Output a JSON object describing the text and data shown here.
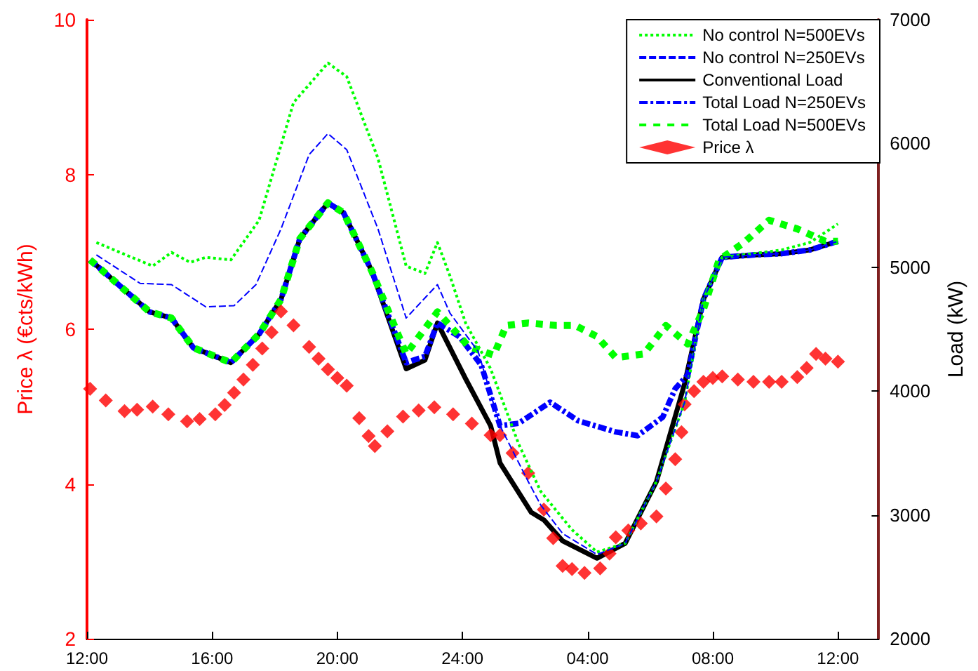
{
  "chart_data": {
    "type": "line",
    "ylabel": "Price λ (€cts/kWh)",
    "y2label": "Load (kW)",
    "xlim": [
      "2000-01-01T12:00",
      "2000-01-02T13:18"
    ],
    "xticks": [
      {
        "value": "2000-01-01T12:00",
        "label": "12:00"
      },
      {
        "value": "2000-01-01T16:00",
        "label": "16:00"
      },
      {
        "value": "2000-01-01T20:00",
        "label": "20:00"
      },
      {
        "value": "2000-01-02T00:00",
        "label": "24:00"
      },
      {
        "value": "2000-01-02T04:00",
        "label": "04:00"
      },
      {
        "value": "2000-01-02T08:00",
        "label": "08:00"
      },
      {
        "value": "2000-01-02T12:00",
        "label": "12:00"
      }
    ],
    "ylim": [
      2,
      10
    ],
    "yticks": [
      2,
      4,
      6,
      8,
      10
    ],
    "y2lim": [
      2000,
      7000
    ],
    "y2ticks": [
      2000,
      3000,
      4000,
      5000,
      6000,
      7000
    ],
    "legend": "top right",
    "grid": false,
    "marker": "none",
    "series": [
      {
        "name": "No control N=500EVs",
        "color": "#00ff00",
        "axis": "y2",
        "line_style": "dotted",
        "x": [
          "2000-01-01T12:18",
          "2000-01-01T14:06",
          "2000-01-01T14:42",
          "2000-01-01T15:18",
          "2000-01-01T15:48",
          "2000-01-01T16:36",
          "2000-01-01T17:30",
          "2000-01-01T18:36",
          "2000-01-01T19:42",
          "2000-01-01T20:18",
          "2000-01-01T21:18",
          "2000-01-01T22:12",
          "2000-01-01T22:48",
          "2000-01-01T23:12",
          "2000-01-01T23:36",
          "2000-01-02T00:06",
          "2000-01-02T00:54",
          "2000-01-02T01:48",
          "2000-01-02T02:30",
          "2000-01-02T03:30",
          "2000-01-02T04:18",
          "2000-01-02T05:12",
          "2000-01-02T06:12",
          "2000-01-02T07:06",
          "2000-01-02T07:42",
          "2000-01-02T08:18",
          "2000-01-02T09:18",
          "2000-01-02T10:12",
          "2000-01-02T11:06",
          "2000-01-02T12:00"
        ],
        "values": [
          5200,
          5010,
          5120,
          5040,
          5080,
          5060,
          5380,
          6330,
          6650,
          6540,
          5880,
          5010,
          4950,
          5200,
          4930,
          4550,
          4180,
          3570,
          3190,
          2880,
          2700,
          2770,
          3270,
          3910,
          4740,
          5080,
          5110,
          5140,
          5200,
          5350
        ]
      },
      {
        "name": "No control N=250EVs",
        "color": "#0000ff",
        "axis": "y2",
        "line_style": "dashed",
        "x": [
          "2000-01-01T12:18",
          "2000-01-01T13:42",
          "2000-01-01T14:42",
          "2000-01-01T15:48",
          "2000-01-01T16:42",
          "2000-01-01T17:24",
          "2000-01-01T18:12",
          "2000-01-01T19:06",
          "2000-01-01T19:42",
          "2000-01-01T20:18",
          "2000-01-01T21:18",
          "2000-01-01T22:12",
          "2000-01-01T23:12",
          "2000-01-01T23:36",
          "2000-01-02T00:30",
          "2000-01-02T01:12",
          "2000-01-02T02:06",
          "2000-01-02T02:30",
          "2000-01-02T03:12",
          "2000-01-02T04:18",
          "2000-01-02T05:12",
          "2000-01-02T06:12",
          "2000-01-02T07:06",
          "2000-01-02T07:42",
          "2000-01-02T08:18",
          "2000-01-02T09:18",
          "2000-01-02T10:12",
          "2000-01-02T11:06",
          "2000-01-02T12:00"
        ],
        "values": [
          5100,
          4870,
          4860,
          4680,
          4690,
          4860,
          5310,
          5910,
          6080,
          5950,
          5310,
          4590,
          4860,
          4630,
          4320,
          3720,
          3270,
          3080,
          2850,
          2680,
          2770,
          3270,
          3910,
          4740,
          5080,
          5100,
          5110,
          5140,
          5210
        ]
      },
      {
        "name": "Conventional Load",
        "color": "#000000",
        "axis": "y2",
        "line_style": "solid",
        "x": [
          "2000-01-01T12:06",
          "2000-01-01T14:00",
          "2000-01-01T14:42",
          "2000-01-01T15:24",
          "2000-01-01T16:36",
          "2000-01-01T17:30",
          "2000-01-01T18:12",
          "2000-01-01T18:48",
          "2000-01-01T19:42",
          "2000-01-01T20:12",
          "2000-01-01T21:06",
          "2000-01-01T22:12",
          "2000-01-01T22:48",
          "2000-01-01T23:12",
          "2000-01-02T00:06",
          "2000-01-02T00:54",
          "2000-01-02T01:12",
          "2000-01-02T02:12",
          "2000-01-02T02:36",
          "2000-01-02T03:12",
          "2000-01-02T04:18",
          "2000-01-02T05:12",
          "2000-01-02T06:12",
          "2000-01-02T07:06",
          "2000-01-02T07:42",
          "2000-01-02T08:18",
          "2000-01-02T09:18",
          "2000-01-02T10:12",
          "2000-01-02T11:06",
          "2000-01-02T12:00"
        ],
        "values": [
          5060,
          4640,
          4590,
          4350,
          4230,
          4460,
          4740,
          5230,
          5520,
          5440,
          4970,
          4180,
          4250,
          4550,
          4100,
          3720,
          3420,
          3020,
          2960,
          2790,
          2650,
          2770,
          3270,
          4060,
          4740,
          5080,
          5100,
          5110,
          5140,
          5210
        ]
      },
      {
        "name": "Total Load N=250EVs",
        "color": "#0000ff",
        "axis": "y2",
        "line_style": "dashed",
        "x": [
          "2000-01-01T12:06",
          "2000-01-01T14:00",
          "2000-01-01T14:42",
          "2000-01-01T15:24",
          "2000-01-01T16:36",
          "2000-01-01T17:30",
          "2000-01-01T18:12",
          "2000-01-01T18:48",
          "2000-01-01T19:42",
          "2000-01-01T20:12",
          "2000-01-01T21:06",
          "2000-01-01T22:12",
          "2000-01-01T22:48",
          "2000-01-01T23:12",
          "2000-01-01T23:54",
          "2000-01-02T00:36",
          "2000-01-02T01:12",
          "2000-01-02T01:48",
          "2000-01-02T02:48",
          "2000-01-02T03:42",
          "2000-01-02T04:54",
          "2000-01-02T05:36",
          "2000-01-02T06:24",
          "2000-01-02T06:48",
          "2000-01-02T07:12",
          "2000-01-02T07:42",
          "2000-01-02T08:18",
          "2000-01-02T09:18",
          "2000-01-02T10:12",
          "2000-01-02T11:06",
          "2000-01-02T12:00"
        ],
        "values": [
          5060,
          4640,
          4590,
          4350,
          4230,
          4460,
          4740,
          5230,
          5520,
          5440,
          4970,
          4230,
          4280,
          4550,
          4440,
          4210,
          3720,
          3740,
          3910,
          3760,
          3670,
          3640,
          3790,
          4020,
          4130,
          4740,
          5080,
          5100,
          5110,
          5140,
          5210
        ]
      },
      {
        "name": "Total Load N=500EVs",
        "color": "#00ff00",
        "axis": "y2",
        "line_style": "dotted",
        "x": [
          "2000-01-01T12:06",
          "2000-01-01T14:00",
          "2000-01-01T14:42",
          "2000-01-01T15:24",
          "2000-01-01T16:36",
          "2000-01-01T17:30",
          "2000-01-01T18:12",
          "2000-01-01T18:48",
          "2000-01-01T19:42",
          "2000-01-01T20:12",
          "2000-01-01T21:06",
          "2000-01-01T22:12",
          "2000-01-01T23:12",
          "2000-01-02T00:12",
          "2000-01-02T01:00",
          "2000-01-02T01:24",
          "2000-01-02T02:06",
          "2000-01-02T03:00",
          "2000-01-02T03:36",
          "2000-01-02T04:18",
          "2000-01-02T04:54",
          "2000-01-02T05:48",
          "2000-01-02T06:30",
          "2000-01-02T07:12",
          "2000-01-02T07:42",
          "2000-01-02T08:12",
          "2000-01-02T09:00",
          "2000-01-02T09:48",
          "2000-01-02T10:42",
          "2000-01-02T11:36",
          "2000-01-02T12:00"
        ],
        "values": [
          5060,
          4640,
          4590,
          4350,
          4230,
          4460,
          4740,
          5230,
          5520,
          5440,
          4970,
          4300,
          4640,
          4360,
          4290,
          4530,
          4550,
          4530,
          4530,
          4440,
          4270,
          4300,
          4530,
          4380,
          4660,
          5060,
          5200,
          5380,
          5310,
          5210,
          5210
        ]
      },
      {
        "name": "Price λ",
        "type": "scatter",
        "marker": "diamond",
        "color": "#ff0000",
        "x": [
          "2000-01-01T12:06",
          "2000-01-01T12:36",
          "2000-01-01T13:12",
          "2000-01-01T13:36",
          "2000-01-01T14:06",
          "2000-01-01T14:36",
          "2000-01-01T15:12",
          "2000-01-01T15:36",
          "2000-01-01T16:06",
          "2000-01-01T16:24",
          "2000-01-01T16:42",
          "2000-01-01T17:00",
          "2000-01-01T17:18",
          "2000-01-01T17:36",
          "2000-01-01T17:54",
          "2000-01-01T18:12",
          "2000-01-01T18:36",
          "2000-01-01T19:06",
          "2000-01-01T19:24",
          "2000-01-01T19:42",
          "2000-01-01T20:00",
          "2000-01-01T20:18",
          "2000-01-01T20:42",
          "2000-01-01T21:00",
          "2000-01-01T21:12",
          "2000-01-01T21:36",
          "2000-01-01T22:06",
          "2000-01-01T22:36",
          "2000-01-01T23:06",
          "2000-01-01T23:42",
          "2000-01-02T00:18",
          "2000-01-02T00:54",
          "2000-01-02T01:12",
          "2000-01-02T01:36",
          "2000-01-02T02:06",
          "2000-01-02T02:36",
          "2000-01-02T02:54",
          "2000-01-02T03:12",
          "2000-01-02T03:30",
          "2000-01-02T03:54",
          "2000-01-02T04:24",
          "2000-01-02T04:42",
          "2000-01-02T04:54",
          "2000-01-02T05:18",
          "2000-01-02T05:42",
          "2000-01-02T06:12",
          "2000-01-02T06:30",
          "2000-01-02T06:48",
          "2000-01-02T07:00",
          "2000-01-02T07:06",
          "2000-01-02T07:24",
          "2000-01-02T07:42",
          "2000-01-02T08:00",
          "2000-01-02T08:18",
          "2000-01-02T08:48",
          "2000-01-02T09:18",
          "2000-01-02T09:48",
          "2000-01-02T10:12",
          "2000-01-02T10:42",
          "2000-01-02T11:00",
          "2000-01-02T11:18",
          "2000-01-02T11:36",
          "2000-01-02T12:00"
        ],
        "values": [
          5.23,
          5.08,
          4.94,
          4.96,
          5.0,
          4.9,
          4.81,
          4.84,
          4.9,
          5.02,
          5.18,
          5.35,
          5.54,
          5.75,
          5.96,
          6.23,
          6.05,
          5.77,
          5.62,
          5.48,
          5.37,
          5.27,
          4.85,
          4.62,
          4.49,
          4.68,
          4.87,
          4.95,
          4.99,
          4.9,
          4.78,
          4.63,
          4.63,
          4.4,
          4.14,
          3.67,
          3.3,
          2.94,
          2.9,
          2.85,
          2.91,
          3.1,
          3.31,
          3.4,
          3.49,
          3.58,
          3.94,
          4.32,
          4.67,
          5.03,
          5.2,
          5.32,
          5.37,
          5.39,
          5.35,
          5.32,
          5.32,
          5.32,
          5.38,
          5.5,
          5.68,
          5.62,
          5.58
        ]
      }
    ]
  }
}
